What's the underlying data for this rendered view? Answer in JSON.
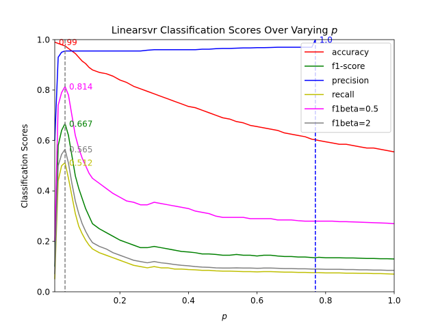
{
  "chart_data": {
    "type": "line",
    "title_main": "Linearsvr Classification Scores Over Varying ",
    "title_var": "p",
    "xlabel": "p",
    "ylabel": "Classification Scores",
    "xlim": [
      0.01,
      1.0
    ],
    "ylim": [
      0.0,
      1.0
    ],
    "xticks": [
      0.2,
      0.4,
      0.6,
      0.8,
      1.0
    ],
    "xtick_labels": [
      "0.2",
      "0.4",
      "0.6",
      "0.8",
      "1.0"
    ],
    "yticks": [
      0.0,
      0.2,
      0.4,
      0.6,
      0.8,
      1.0
    ],
    "ytick_labels": [
      "0.0",
      "0.2",
      "0.4",
      "0.6",
      "0.8",
      "1.0"
    ],
    "legend_position": "top-right",
    "x": [
      0.01,
      0.02,
      0.03,
      0.04,
      0.05,
      0.06,
      0.07,
      0.08,
      0.09,
      0.1,
      0.11,
      0.12,
      0.14,
      0.16,
      0.18,
      0.2,
      0.22,
      0.24,
      0.26,
      0.28,
      0.3,
      0.32,
      0.34,
      0.36,
      0.38,
      0.4,
      0.42,
      0.44,
      0.46,
      0.48,
      0.5,
      0.52,
      0.54,
      0.56,
      0.58,
      0.6,
      0.62,
      0.64,
      0.66,
      0.68,
      0.7,
      0.72,
      0.74,
      0.76,
      0.77,
      0.78,
      0.8,
      0.82,
      0.84,
      0.86,
      0.88,
      0.9,
      0.92,
      0.94,
      0.96,
      0.98,
      1.0
    ],
    "series": [
      {
        "name": "accuracy",
        "color": "#ff0000",
        "values": [
          0.99,
          0.985,
          0.98,
          0.975,
          0.965,
          0.955,
          0.945,
          0.93,
          0.915,
          0.905,
          0.89,
          0.88,
          0.87,
          0.865,
          0.855,
          0.84,
          0.83,
          0.815,
          0.805,
          0.795,
          0.785,
          0.775,
          0.765,
          0.755,
          0.745,
          0.735,
          0.73,
          0.72,
          0.71,
          0.7,
          0.69,
          0.685,
          0.675,
          0.67,
          0.66,
          0.655,
          0.65,
          0.645,
          0.64,
          0.63,
          0.625,
          0.62,
          0.615,
          0.605,
          0.603,
          0.6,
          0.595,
          0.59,
          0.585,
          0.585,
          0.58,
          0.575,
          0.57,
          0.57,
          0.565,
          0.56,
          0.555
        ]
      },
      {
        "name": "f1-score",
        "color": "#008000",
        "values": [
          0.1,
          0.58,
          0.64,
          0.667,
          0.62,
          0.54,
          0.46,
          0.41,
          0.37,
          0.33,
          0.3,
          0.27,
          0.25,
          0.235,
          0.22,
          0.205,
          0.195,
          0.185,
          0.175,
          0.175,
          0.18,
          0.175,
          0.17,
          0.165,
          0.16,
          0.158,
          0.155,
          0.15,
          0.15,
          0.148,
          0.145,
          0.145,
          0.148,
          0.145,
          0.145,
          0.142,
          0.145,
          0.145,
          0.142,
          0.14,
          0.14,
          0.138,
          0.138,
          0.136,
          0.135,
          0.137,
          0.135,
          0.135,
          0.135,
          0.134,
          0.134,
          0.133,
          0.132,
          0.132,
          0.131,
          0.131,
          0.13
        ]
      },
      {
        "name": "precision",
        "color": "#0000ff",
        "values": [
          0.6,
          0.93,
          0.95,
          0.955,
          0.955,
          0.955,
          0.955,
          0.955,
          0.955,
          0.955,
          0.955,
          0.955,
          0.955,
          0.955,
          0.955,
          0.955,
          0.955,
          0.955,
          0.955,
          0.958,
          0.96,
          0.96,
          0.96,
          0.96,
          0.96,
          0.96,
          0.96,
          0.962,
          0.962,
          0.964,
          0.965,
          0.965,
          0.966,
          0.967,
          0.967,
          0.968,
          0.968,
          0.969,
          0.97,
          0.97,
          0.97,
          0.97,
          0.97,
          0.97,
          1.0,
          null,
          null,
          null,
          null,
          null,
          null,
          null,
          null,
          null,
          null,
          null,
          null
        ]
      },
      {
        "name": "recall",
        "color": "#bfbf00",
        "values": [
          0.05,
          0.44,
          0.5,
          0.512,
          0.45,
          0.38,
          0.31,
          0.26,
          0.23,
          0.205,
          0.185,
          0.17,
          0.155,
          0.145,
          0.135,
          0.125,
          0.115,
          0.105,
          0.1,
          0.095,
          0.1,
          0.095,
          0.095,
          0.09,
          0.09,
          0.088,
          0.087,
          0.085,
          0.085,
          0.083,
          0.082,
          0.082,
          0.081,
          0.08,
          0.08,
          0.079,
          0.08,
          0.08,
          0.079,
          0.078,
          0.078,
          0.077,
          0.077,
          0.076,
          0.076,
          0.076,
          0.075,
          0.075,
          0.075,
          0.074,
          0.074,
          0.073,
          0.073,
          0.072,
          0.072,
          0.071,
          0.07
        ]
      },
      {
        "name": "f1beta=0.5",
        "color": "#ff00ff",
        "values": [
          0.2,
          0.74,
          0.79,
          0.814,
          0.78,
          0.7,
          0.62,
          0.57,
          0.53,
          0.5,
          0.47,
          0.45,
          0.43,
          0.41,
          0.39,
          0.375,
          0.36,
          0.355,
          0.345,
          0.345,
          0.355,
          0.35,
          0.345,
          0.34,
          0.335,
          0.33,
          0.32,
          0.315,
          0.31,
          0.3,
          0.295,
          0.295,
          0.295,
          0.295,
          0.29,
          0.29,
          0.29,
          0.29,
          0.285,
          0.285,
          0.285,
          0.282,
          0.28,
          0.28,
          0.28,
          0.28,
          0.28,
          0.28,
          0.278,
          0.278,
          0.277,
          0.276,
          0.275,
          0.274,
          0.273,
          0.272,
          0.27
        ]
      },
      {
        "name": "f1beta=2",
        "color": "#808080",
        "values": [
          0.07,
          0.5,
          0.545,
          0.565,
          0.51,
          0.43,
          0.36,
          0.31,
          0.27,
          0.24,
          0.215,
          0.195,
          0.18,
          0.17,
          0.155,
          0.145,
          0.135,
          0.125,
          0.12,
          0.115,
          0.12,
          0.115,
          0.112,
          0.108,
          0.105,
          0.103,
          0.1,
          0.098,
          0.097,
          0.095,
          0.094,
          0.094,
          0.095,
          0.094,
          0.094,
          0.093,
          0.094,
          0.094,
          0.093,
          0.092,
          0.092,
          0.091,
          0.091,
          0.09,
          0.09,
          0.09,
          0.089,
          0.089,
          0.089,
          0.088,
          0.088,
          0.087,
          0.087,
          0.086,
          0.086,
          0.085,
          0.085
        ]
      }
    ],
    "vlines": [
      {
        "x": 0.04,
        "color": "#808080",
        "name": "f1beta2-max-vline"
      },
      {
        "x": 0.77,
        "color": "#0000ff",
        "name": "precision-max-vline"
      }
    ],
    "annotations": [
      {
        "text": "0.565",
        "x": 0.04,
        "y": 0.565,
        "color": "#808080",
        "name": "annot-f1beta2"
      },
      {
        "text": "0.814",
        "x": 0.04,
        "y": 0.814,
        "color": "#ff00ff",
        "name": "annot-f1beta05"
      },
      {
        "text": "0.512",
        "x": 0.04,
        "y": 0.512,
        "color": "#bfbf00",
        "name": "annot-recall"
      },
      {
        "text": "0.667",
        "x": 0.04,
        "y": 0.667,
        "color": "#008000",
        "name": "annot-f1score"
      },
      {
        "text": "0.99",
        "x": 0.01,
        "y": 0.99,
        "color": "#ff0000",
        "name": "annot-accuracy"
      },
      {
        "text": "1.0",
        "x": 0.77,
        "y": 1.0,
        "color": "#0000ff",
        "name": "annot-precision"
      }
    ]
  }
}
